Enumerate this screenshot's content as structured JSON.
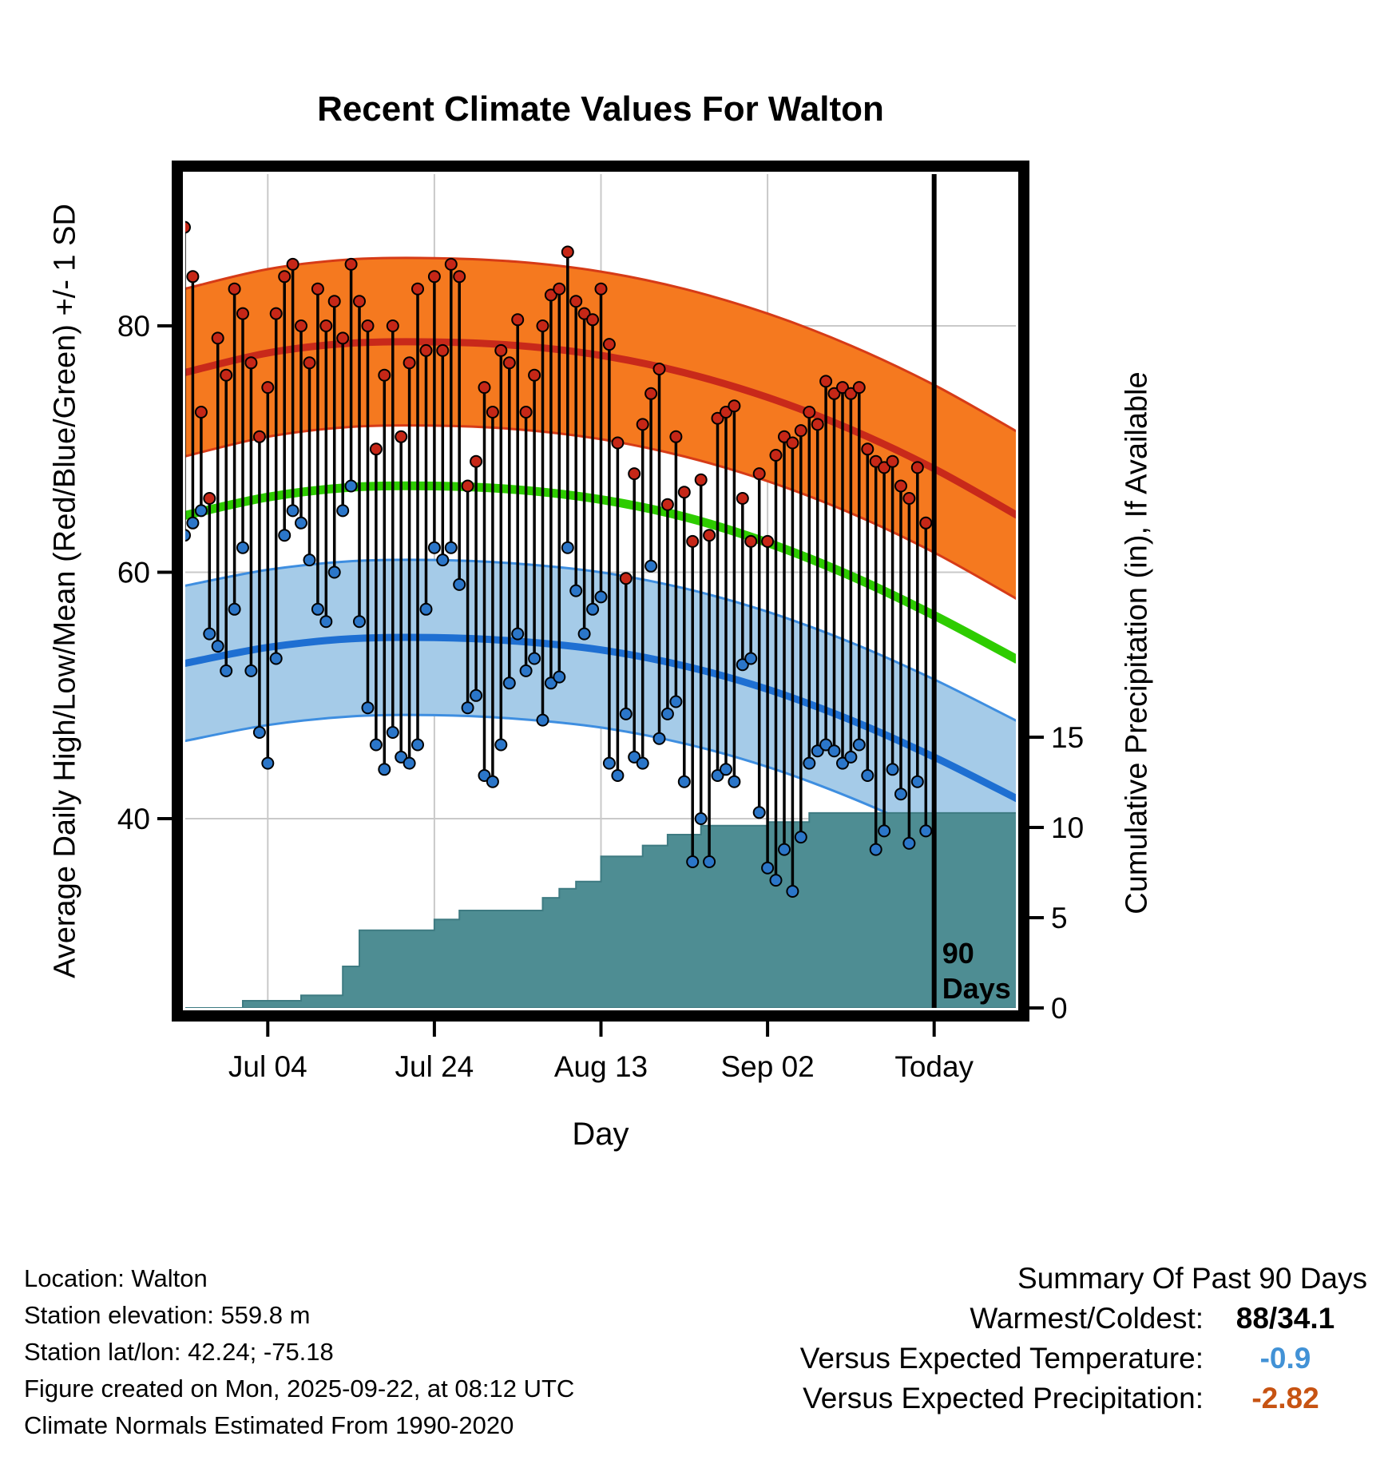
{
  "chart_data": {
    "type": "composite",
    "title": "Recent Climate Values For Walton",
    "xlabel": "Day",
    "ylabel_left": "Average Daily High/Low/Mean (Red/Blue/Green) +/- 1 SD",
    "ylabel_right": "Cumulative Precipitation (in), If Available",
    "x_ticks": [
      {
        "day": 10,
        "label": "Jul 04"
      },
      {
        "day": 30,
        "label": "Jul 24"
      },
      {
        "day": 50,
        "label": "Aug 13"
      },
      {
        "day": 70,
        "label": "Sep 02"
      },
      {
        "day": 90,
        "label": "Today"
      }
    ],
    "x_range_days": [
      0,
      100
    ],
    "y_left_ticks": [
      40,
      60,
      80
    ],
    "y_left_range": [
      24.6,
      92.3
    ],
    "y_right_ticks": [
      0,
      5,
      10,
      15
    ],
    "y_right_range_in": [
      0,
      15
    ],
    "grid": true,
    "normals": {
      "days": [
        0,
        10,
        20,
        30,
        40,
        50,
        60,
        70,
        80,
        90,
        100
      ],
      "high_upper": [
        83.0,
        84.6,
        85.4,
        85.5,
        85.2,
        84.4,
        83.0,
        81.0,
        78.4,
        75.2,
        71.4
      ],
      "high_mean": [
        76.2,
        77.8,
        78.6,
        78.7,
        78.4,
        77.6,
        76.2,
        74.2,
        71.6,
        68.4,
        64.6
      ],
      "high_lower": [
        69.4,
        71.0,
        71.8,
        71.9,
        71.6,
        70.8,
        69.4,
        67.4,
        64.8,
        61.6,
        57.8
      ],
      "mean": [
        64.6,
        66.1,
        66.9,
        67.0,
        66.7,
        65.9,
        64.5,
        62.4,
        59.7,
        56.5,
        52.9
      ],
      "low_upper": [
        58.9,
        60.2,
        60.9,
        61.0,
        60.7,
        60.0,
        58.7,
        56.8,
        54.3,
        51.3,
        47.9
      ],
      "low_mean": [
        52.6,
        53.9,
        54.6,
        54.7,
        54.4,
        53.7,
        52.4,
        50.5,
        48.0,
        45.0,
        41.6
      ],
      "low_lower": [
        46.3,
        47.6,
        48.3,
        48.4,
        48.1,
        47.4,
        46.1,
        44.2,
        41.7,
        38.7,
        35.3
      ]
    },
    "daily": {
      "start_day": 0,
      "high": [
        88,
        84,
        73,
        66,
        79,
        76,
        83,
        81,
        77,
        71,
        75,
        81,
        84,
        85,
        80,
        77,
        83,
        80,
        82,
        79,
        85,
        82,
        80,
        70,
        76,
        80,
        71,
        77,
        83,
        78,
        84,
        78,
        85,
        84,
        67,
        69,
        75,
        73,
        78,
        77,
        80.5,
        73,
        76,
        80,
        82.5,
        83,
        86,
        82,
        81,
        80.5,
        83,
        78.5,
        70.5,
        59.5,
        68,
        72,
        74.5,
        76.5,
        65.5,
        71,
        66.5,
        62.5,
        67.5,
        63,
        72.5,
        73,
        73.5,
        66,
        62.5,
        68,
        62.5,
        69.5,
        71,
        70.5,
        71.5,
        73,
        72,
        75.5,
        74.5,
        75,
        74.5,
        75,
        70,
        69,
        68.5,
        69,
        67,
        66,
        68.5,
        64
      ],
      "low": [
        63,
        64,
        65,
        55,
        54,
        52,
        57,
        62,
        52,
        47,
        44.5,
        53,
        63,
        65,
        64,
        61,
        57,
        56,
        60,
        65,
        67,
        56,
        49,
        46,
        44,
        47,
        45,
        44.5,
        46,
        57,
        62,
        61,
        62,
        59,
        49,
        50,
        43.5,
        43,
        46,
        51,
        55,
        52,
        53,
        48,
        51,
        51.5,
        62,
        58.5,
        55,
        57,
        58,
        44.5,
        43.5,
        48.5,
        45,
        44.5,
        60.5,
        46.5,
        48.5,
        49.5,
        43,
        36.5,
        40,
        36.5,
        43.5,
        44,
        43,
        52.5,
        53,
        40.5,
        36,
        35,
        37.5,
        34.1,
        38.5,
        44.5,
        45.5,
        46,
        45.5,
        44.5,
        45,
        46,
        43.5,
        37.5,
        39,
        44,
        42,
        38,
        43,
        39
      ]
    },
    "precip_cumulative_steps": [
      [
        0,
        0
      ],
      [
        7,
        0.4
      ],
      [
        14,
        0.7
      ],
      [
        19,
        2.3
      ],
      [
        21,
        4.3
      ],
      [
        30,
        4.9
      ],
      [
        33,
        5.4
      ],
      [
        43,
        6.1
      ],
      [
        45,
        6.6
      ],
      [
        47,
        7.0
      ],
      [
        50,
        8.4
      ],
      [
        55,
        9.0
      ],
      [
        58,
        9.6
      ],
      [
        62,
        10.1
      ],
      [
        70,
        10.3
      ],
      [
        75,
        10.8
      ],
      [
        100,
        10.8
      ]
    ],
    "today_day": 90,
    "annotation": {
      "line1": "90",
      "line2": "Days"
    }
  },
  "colors": {
    "high_band_fill": "#F5791F",
    "high_band_edge": "#D63B17",
    "high_mean_line": "#C8291A",
    "mean_line": "#2ECC00",
    "low_band_fill": "#A5CBE8",
    "low_band_edge": "#3E8EE0",
    "low_mean_line": "#1E6FD2",
    "precip_fill": "#4E8D93",
    "precip_edge": "#3E7B82",
    "daily_stem": "#000000",
    "high_dot": "#C62717",
    "low_dot": "#2B76C9",
    "grid": "#C9C9C9",
    "today_line": "#000000"
  },
  "footer": {
    "lines": [
      "Location: Walton",
      "Station elevation: 559.8 m",
      "Station lat/lon: 42.24; -75.18",
      "Figure created on Mon, 2025-09-22, at 08:12 UTC",
      "Climate Normals Estimated From 1990-2020"
    ]
  },
  "summary": {
    "title": "Summary Of Past 90 Days",
    "rows": [
      {
        "label": "Warmest/Coldest:",
        "value": "88/34.1",
        "color": "#000000"
      },
      {
        "label": "Versus Expected Temperature:",
        "value": "-0.9",
        "color": "#4292D6"
      },
      {
        "label": "Versus Expected Precipitation:",
        "value": "-2.82",
        "color": "#C75312"
      }
    ]
  }
}
